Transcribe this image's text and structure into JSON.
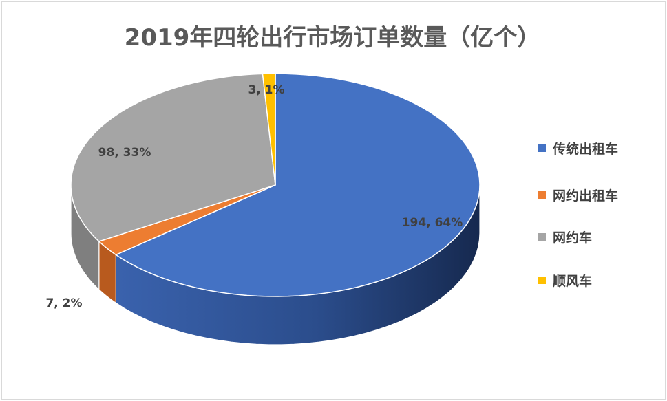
{
  "chart_data": {
    "type": "pie",
    "title": "2019年四轮出行市场订单数量（亿个）",
    "categories": [
      "传统出租车",
      "网约出租车",
      "网约车",
      "顺风车"
    ],
    "values": [
      194,
      7,
      98,
      3
    ],
    "percents": [
      "64%",
      "2%",
      "33%",
      "1%"
    ],
    "labels": [
      "194, 64%",
      "7, 2%",
      "98, 33%",
      "3, 1%"
    ],
    "colors": [
      "#4472c4",
      "#ed7d31",
      "#a5a5a5",
      "#ffc000"
    ],
    "legend_position": "right",
    "style": "3d"
  }
}
